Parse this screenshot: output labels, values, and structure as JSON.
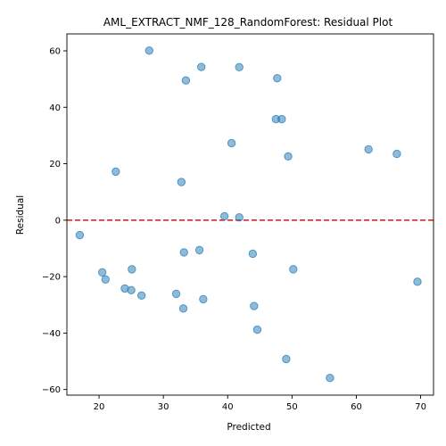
{
  "chart_data": {
    "type": "scatter",
    "title": "AML_EXTRACT_NMF_128_RandomForest: Residual Plot",
    "xlabel": "Predicted",
    "ylabel": "Residual",
    "xlim": [
      15,
      72
    ],
    "ylim": [
      -62,
      66
    ],
    "xticks": [
      20,
      30,
      40,
      50,
      60,
      70
    ],
    "yticks": [
      -60,
      -40,
      -20,
      0,
      20,
      40,
      60
    ],
    "grid": false,
    "legend": "none",
    "reference_line": {
      "y": 0,
      "color": "#d62728",
      "style": "dashed"
    },
    "point_color": "#1f77b4",
    "point_alpha": 0.5,
    "points": [
      {
        "x": 27.8,
        "y": 60.1
      },
      {
        "x": 35.9,
        "y": 54.3
      },
      {
        "x": 41.8,
        "y": 54.2
      },
      {
        "x": 33.5,
        "y": 49.5
      },
      {
        "x": 47.7,
        "y": 50.3
      },
      {
        "x": 47.5,
        "y": 35.8
      },
      {
        "x": 48.4,
        "y": 35.8
      },
      {
        "x": 40.6,
        "y": 27.3
      },
      {
        "x": 61.9,
        "y": 25.1
      },
      {
        "x": 66.3,
        "y": 23.5
      },
      {
        "x": 49.4,
        "y": 22.6
      },
      {
        "x": 22.6,
        "y": 17.2
      },
      {
        "x": 32.8,
        "y": 13.5
      },
      {
        "x": 39.5,
        "y": 1.4
      },
      {
        "x": 41.8,
        "y": 1.0
      },
      {
        "x": 17.0,
        "y": -5.3
      },
      {
        "x": 35.6,
        "y": -10.6
      },
      {
        "x": 33.2,
        "y": -11.4
      },
      {
        "x": 43.9,
        "y": -11.9
      },
      {
        "x": 25.1,
        "y": -17.4
      },
      {
        "x": 50.2,
        "y": -17.4
      },
      {
        "x": 20.5,
        "y": -18.5
      },
      {
        "x": 21.0,
        "y": -21.0
      },
      {
        "x": 69.5,
        "y": -21.8
      },
      {
        "x": 24.0,
        "y": -24.2
      },
      {
        "x": 25.0,
        "y": -24.8
      },
      {
        "x": 32.0,
        "y": -26.1
      },
      {
        "x": 26.6,
        "y": -26.7
      },
      {
        "x": 36.2,
        "y": -28.0
      },
      {
        "x": 44.1,
        "y": -30.4
      },
      {
        "x": 33.1,
        "y": -31.3
      },
      {
        "x": 44.6,
        "y": -38.8
      },
      {
        "x": 49.1,
        "y": -49.2
      },
      {
        "x": 55.9,
        "y": -55.9
      }
    ]
  }
}
